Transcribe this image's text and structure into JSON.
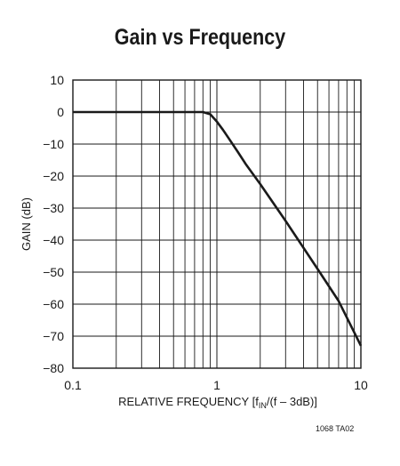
{
  "chart_data": {
    "type": "line",
    "title": "Gain vs Frequency",
    "xlabel_parts": [
      "RELATIVE FREQUENCY [f",
      "IN",
      "/(f – 3dB)]"
    ],
    "ylabel": "GAIN (dB)",
    "x_scale": "log",
    "xlim": [
      0.1,
      10
    ],
    "ylim": [
      -80,
      10
    ],
    "x_ticks": [
      0.1,
      1,
      10
    ],
    "x_tick_labels": [
      "0.1",
      "1",
      "10"
    ],
    "y_ticks": [
      10,
      0,
      -10,
      -20,
      -30,
      -40,
      -50,
      -60,
      -70,
      -80
    ],
    "y_tick_labels": [
      "10",
      "0",
      "−10",
      "−20",
      "−30",
      "−40",
      "−50",
      "−60",
      "−70",
      "−80"
    ],
    "grid": true,
    "series": [
      {
        "x": [
          0.1,
          0.2,
          0.4,
          0.6,
          0.7,
          0.8,
          0.9,
          1.0,
          1.1,
          1.2,
          1.4,
          1.6,
          2.0,
          3.0,
          5.0,
          7.0,
          10.0
        ],
        "y": [
          0,
          0,
          0,
          0,
          0,
          0,
          -0.7,
          -3,
          -5.5,
          -8,
          -12.5,
          -16.5,
          -22.5,
          -34,
          -49,
          -59,
          -73
        ]
      }
    ],
    "line_color": "#1a1a1a"
  },
  "footnote": "1068 TA02"
}
